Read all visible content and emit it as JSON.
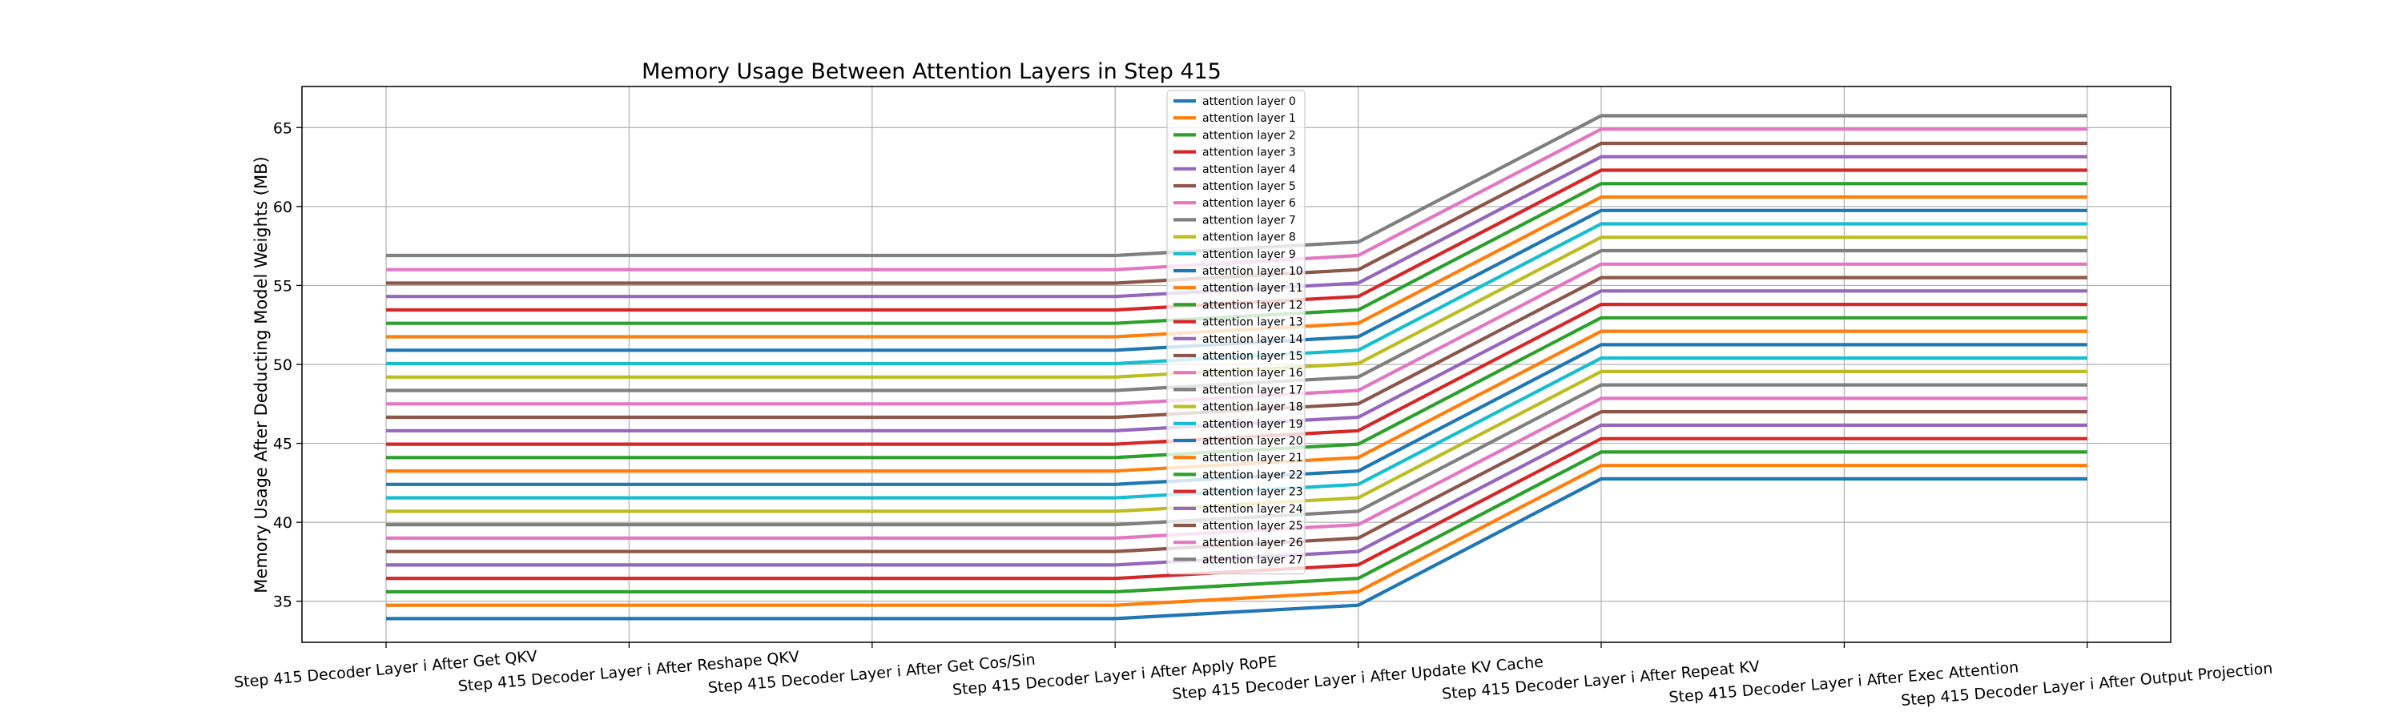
{
  "chart_data": {
    "type": "line",
    "title": "Memory Usage Between Attention Layers in Step 415",
    "xlabel": "",
    "ylabel": "Memory Usage After Deducting Model Weights (MB)",
    "categories": [
      "Step 415 Decoder Layer i After Get QKV",
      "Step 415 Decoder Layer i After Reshape QKV",
      "Step 415 Decoder Layer i After Get Cos/Sin",
      "Step 415 Decoder Layer i After Apply RoPE",
      "Step 415 Decoder Layer i After Update KV Cache",
      "Step 415 Decoder Layer i After Repeat KV",
      "Step 415 Decoder Layer i After Exec Attention",
      "Step 415 Decoder Layer i After Output Projection"
    ],
    "ylim": [
      32.4,
      67.6
    ],
    "yticks": [
      35,
      40,
      45,
      50,
      55,
      60,
      65
    ],
    "grid": true,
    "legend_position": "top-center",
    "colors": [
      "#1f77b4",
      "#ff7f0e",
      "#2ca02c",
      "#d62728",
      "#9467bd",
      "#8c564b",
      "#e377c2",
      "#7f7f7f",
      "#bcbd22",
      "#17becf"
    ],
    "base_values": [
      33.9,
      34.75,
      35.6,
      36.45,
      37.3,
      38.15,
      39.0,
      39.85,
      40.7,
      41.55,
      42.4,
      43.25,
      44.1,
      44.95,
      45.8,
      46.65,
      47.5,
      48.35,
      49.2,
      50.05,
      50.9,
      51.75,
      52.6,
      53.45,
      54.3,
      55.15,
      56.0,
      56.9
    ],
    "kv_cache_offset": 0.85,
    "repeat_kv_step": 0.85,
    "repeat_kv_start": 42.75,
    "series": [
      {
        "name": "attention layer 0",
        "values": [
          33.9,
          33.9,
          33.9,
          33.9,
          34.75,
          42.75,
          42.75,
          42.75
        ]
      },
      {
        "name": "attention layer 1",
        "values": [
          34.75,
          34.75,
          34.75,
          34.75,
          35.6,
          43.6,
          43.6,
          43.6
        ]
      },
      {
        "name": "attention layer 2",
        "values": [
          35.6,
          35.6,
          35.6,
          35.6,
          36.45,
          44.45,
          44.45,
          44.45
        ]
      },
      {
        "name": "attention layer 3",
        "values": [
          36.45,
          36.45,
          36.45,
          36.45,
          37.3,
          45.3,
          45.3,
          45.3
        ]
      },
      {
        "name": "attention layer 4",
        "values": [
          37.3,
          37.3,
          37.3,
          37.3,
          38.15,
          46.15,
          46.15,
          46.15
        ]
      },
      {
        "name": "attention layer 5",
        "values": [
          38.15,
          38.15,
          38.15,
          38.15,
          39.0,
          47.0,
          47.0,
          47.0
        ]
      },
      {
        "name": "attention layer 6",
        "values": [
          39.0,
          39.0,
          39.0,
          39.0,
          39.85,
          47.85,
          47.85,
          47.85
        ]
      },
      {
        "name": "attention layer 7",
        "values": [
          39.85,
          39.85,
          39.85,
          39.85,
          40.7,
          48.7,
          48.7,
          48.7
        ]
      },
      {
        "name": "attention layer 8",
        "values": [
          40.7,
          40.7,
          40.7,
          40.7,
          41.55,
          49.55,
          49.55,
          49.55
        ]
      },
      {
        "name": "attention layer 9",
        "values": [
          41.55,
          41.55,
          41.55,
          41.55,
          42.4,
          50.4,
          50.4,
          50.4
        ]
      },
      {
        "name": "attention layer 10",
        "values": [
          42.4,
          42.4,
          42.4,
          42.4,
          43.25,
          51.25,
          51.25,
          51.25
        ]
      },
      {
        "name": "attention layer 11",
        "values": [
          43.25,
          43.25,
          43.25,
          43.25,
          44.1,
          52.1,
          52.1,
          52.1
        ]
      },
      {
        "name": "attention layer 12",
        "values": [
          44.1,
          44.1,
          44.1,
          44.1,
          44.95,
          52.95,
          52.95,
          52.95
        ]
      },
      {
        "name": "attention layer 13",
        "values": [
          44.95,
          44.95,
          44.95,
          44.95,
          45.8,
          53.8,
          53.8,
          53.8
        ]
      },
      {
        "name": "attention layer 14",
        "values": [
          45.8,
          45.8,
          45.8,
          45.8,
          46.65,
          54.65,
          54.65,
          54.65
        ]
      },
      {
        "name": "attention layer 15",
        "values": [
          46.65,
          46.65,
          46.65,
          46.65,
          47.5,
          55.5,
          55.5,
          55.5
        ]
      },
      {
        "name": "attention layer 16",
        "values": [
          47.5,
          47.5,
          47.5,
          47.5,
          48.35,
          56.35,
          56.35,
          56.35
        ]
      },
      {
        "name": "attention layer 17",
        "values": [
          48.35,
          48.35,
          48.35,
          48.35,
          49.2,
          57.2,
          57.2,
          57.2
        ]
      },
      {
        "name": "attention layer 18",
        "values": [
          49.2,
          49.2,
          49.2,
          49.2,
          50.05,
          58.05,
          58.05,
          58.05
        ]
      },
      {
        "name": "attention layer 19",
        "values": [
          50.05,
          50.05,
          50.05,
          50.05,
          50.9,
          58.9,
          58.9,
          58.9
        ]
      },
      {
        "name": "attention layer 20",
        "values": [
          50.9,
          50.9,
          50.9,
          50.9,
          51.75,
          59.75,
          59.75,
          59.75
        ]
      },
      {
        "name": "attention layer 21",
        "values": [
          51.75,
          51.75,
          51.75,
          51.75,
          52.6,
          60.6,
          60.6,
          60.6
        ]
      },
      {
        "name": "attention layer 22",
        "values": [
          52.6,
          52.6,
          52.6,
          52.6,
          53.45,
          61.45,
          61.45,
          61.45
        ]
      },
      {
        "name": "attention layer 23",
        "values": [
          53.45,
          53.45,
          53.45,
          53.45,
          54.3,
          62.3,
          62.3,
          62.3
        ]
      },
      {
        "name": "attention layer 24",
        "values": [
          54.3,
          54.3,
          54.3,
          54.3,
          55.15,
          63.15,
          63.15,
          63.15
        ]
      },
      {
        "name": "attention layer 25",
        "values": [
          55.15,
          55.15,
          55.15,
          55.15,
          56.0,
          64.0,
          64.0,
          64.0
        ]
      },
      {
        "name": "attention layer 26",
        "values": [
          56.0,
          56.0,
          56.0,
          56.0,
          56.9,
          64.9,
          64.9,
          64.9
        ]
      },
      {
        "name": "attention layer 27",
        "values": [
          56.9,
          56.9,
          56.9,
          56.9,
          57.75,
          65.75,
          65.75,
          65.75
        ]
      }
    ]
  }
}
